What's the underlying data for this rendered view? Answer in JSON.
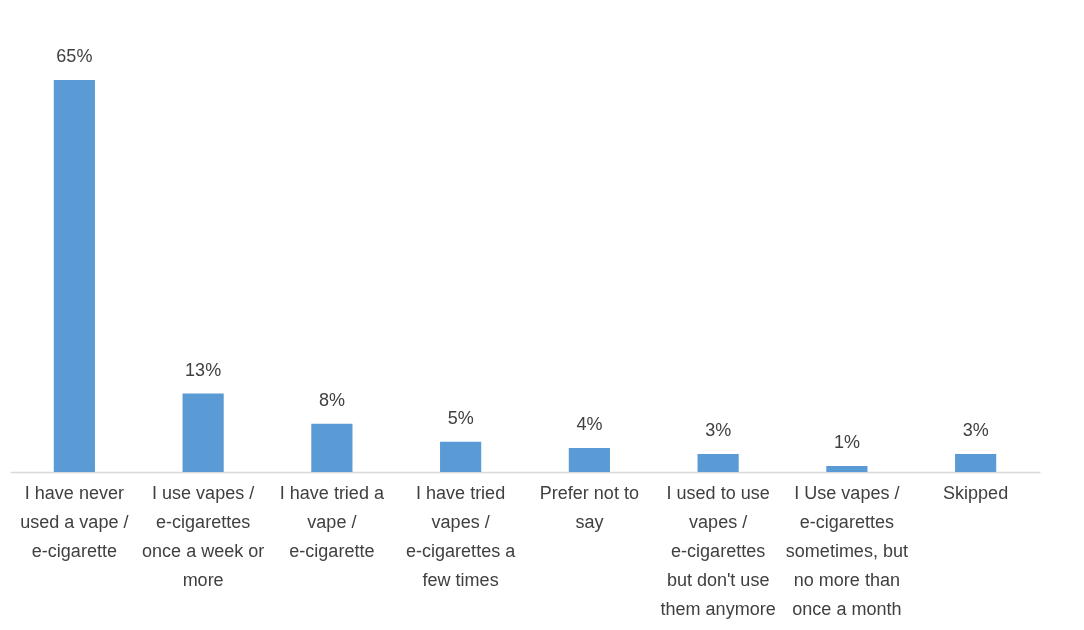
{
  "chart_data": {
    "type": "bar",
    "categories": [
      "I have never used a vape / e-cigarette",
      "I use vapes / e-cigarettes once a week or more",
      "I have tried a vape / e-cigarette",
      "I have tried vapes / e-cigarettes a few times",
      "Prefer not to say",
      "I used to use vapes / e-cigarettes but don't use them anymore",
      "I Use vapes / e-cigarettes sometimes, but no more than once a month",
      "Skipped"
    ],
    "values": [
      65,
      13,
      8,
      5,
      4,
      3,
      1,
      3
    ],
    "value_labels": [
      "65%",
      "13%",
      "8%",
      "5%",
      "4%",
      "3%",
      "1%",
      "3%"
    ],
    "color": "#5b9bd5",
    "grid": false
  }
}
